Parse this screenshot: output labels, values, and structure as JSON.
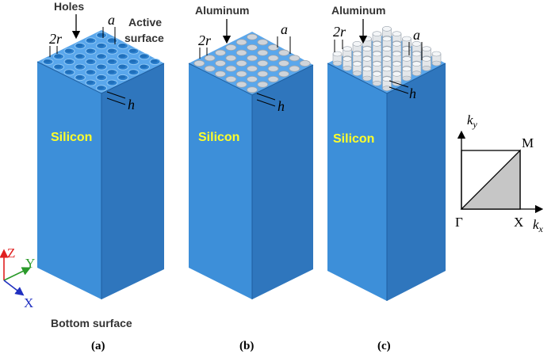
{
  "colors": {
    "silicon_front": "#3d8fd9",
    "silicon_side": "#2f76bd",
    "silicon_top": "#5aa7ec",
    "silicon_label": "#ffff2a",
    "hole": "#2c80cf",
    "hole_rim": "#8ec7f5",
    "aluminum": "#cfd4da",
    "aluminum_edge": "#9aa3ad",
    "axis_z": "#e02020",
    "axis_y": "#2a9a2a",
    "axis_x": "#2030c0",
    "bz_fill": "#c6c6c6"
  },
  "panels": [
    {
      "caption": "(a)",
      "material_label": "Silicon",
      "top_label": "Holes",
      "label_2r": "2r",
      "label_a": "a",
      "label_h": "h",
      "side_label": [
        "Active",
        "surface"
      ]
    },
    {
      "caption": "(b)",
      "material_label": "Silicon",
      "top_label": "Aluminum",
      "label_2r": "2r",
      "label_a": "a",
      "label_h": "h"
    },
    {
      "caption": "(c)",
      "material_label": "Silicon",
      "top_label": "Aluminum",
      "label_2r": "2r",
      "label_a": "a",
      "label_h": "h"
    }
  ],
  "bottom_label": "Bottom surface",
  "axes": {
    "z": "Z",
    "y": "Y",
    "x": "X"
  },
  "brillouin_zone": {
    "ky": "k",
    "ky_sub": "y",
    "kx": "k",
    "kx_sub": "x",
    "gamma": "Γ",
    "X": "X",
    "M": "M"
  }
}
